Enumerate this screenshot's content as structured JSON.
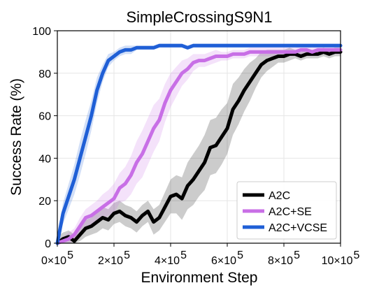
{
  "chart_data": {
    "type": "line",
    "title": "SimpleCrossingS9N1",
    "xlabel": "Environment Step",
    "ylabel": "Success Rate (%)",
    "xlim": [
      0,
      1000000
    ],
    "ylim": [
      0,
      100
    ],
    "x_ticks": [
      {
        "value": 0,
        "mantissa": "0",
        "base": "×10",
        "exp": "5"
      },
      {
        "value": 200000,
        "mantissa": "2",
        "base": "×10",
        "exp": "5"
      },
      {
        "value": 400000,
        "mantissa": "4",
        "base": "×10",
        "exp": "5"
      },
      {
        "value": 600000,
        "mantissa": "6",
        "base": "×10",
        "exp": "5"
      },
      {
        "value": 800000,
        "mantissa": "8",
        "base": "×10",
        "exp": "5"
      },
      {
        "value": 1000000,
        "mantissa": "10",
        "base": "×10",
        "exp": "5"
      }
    ],
    "y_ticks": [
      0,
      20,
      40,
      60,
      80,
      100
    ],
    "grid": true,
    "legend_position": "bottom-right",
    "series": [
      {
        "name": "A2C",
        "color": "#000000",
        "x": [
          0,
          20000,
          40000,
          60000,
          80000,
          100000,
          120000,
          140000,
          160000,
          180000,
          200000,
          220000,
          240000,
          260000,
          280000,
          300000,
          320000,
          340000,
          360000,
          380000,
          400000,
          420000,
          440000,
          460000,
          480000,
          500000,
          520000,
          540000,
          560000,
          580000,
          600000,
          620000,
          640000,
          660000,
          680000,
          700000,
          720000,
          740000,
          760000,
          780000,
          800000,
          820000,
          840000,
          860000,
          880000,
          900000,
          920000,
          940000,
          960000,
          980000,
          1000000
        ],
        "y": [
          0,
          2,
          3,
          1,
          4,
          7,
          8,
          10,
          12,
          11,
          14,
          15,
          13,
          12,
          10,
          13,
          15,
          10,
          12,
          17,
          22,
          23,
          21,
          27,
          30,
          34,
          38,
          45,
          46,
          50,
          54,
          63,
          67,
          72,
          76,
          80,
          84,
          86,
          87,
          88,
          88,
          89,
          89,
          88,
          89,
          89,
          89,
          90,
          89,
          90,
          90
        ],
        "band": [
          3,
          3,
          3,
          3,
          3,
          4,
          4,
          5,
          5,
          5,
          5,
          5,
          5,
          5,
          5,
          5,
          5,
          6,
          6,
          7,
          8,
          9,
          10,
          11,
          12,
          12,
          13,
          13,
          13,
          13,
          12,
          12,
          11,
          10,
          9,
          7,
          6,
          5,
          4,
          3,
          3,
          3,
          2,
          2,
          2,
          2,
          2,
          2,
          2,
          2,
          2
        ]
      },
      {
        "name": "A2C+SE",
        "color": "#c86fe6",
        "x": [
          0,
          20000,
          40000,
          60000,
          80000,
          100000,
          120000,
          140000,
          160000,
          180000,
          200000,
          220000,
          240000,
          260000,
          280000,
          300000,
          320000,
          340000,
          360000,
          380000,
          400000,
          420000,
          440000,
          460000,
          480000,
          500000,
          520000,
          540000,
          560000,
          580000,
          600000,
          620000,
          640000,
          660000,
          680000,
          700000,
          720000,
          740000,
          760000,
          780000,
          800000,
          820000,
          840000,
          860000,
          880000,
          900000,
          920000,
          940000,
          960000,
          980000,
          1000000
        ],
        "y": [
          0,
          1,
          2,
          4,
          8,
          12,
          13,
          15,
          17,
          19,
          21,
          26,
          28,
          32,
          38,
          42,
          48,
          54,
          58,
          66,
          72,
          76,
          80,
          82,
          85,
          86,
          86,
          87,
          88,
          88,
          88,
          89,
          89,
          89,
          90,
          90,
          90,
          90,
          90,
          90,
          90,
          90,
          90,
          91,
          91,
          90,
          91,
          91,
          91,
          91,
          91
        ],
        "band": [
          2,
          2,
          3,
          3,
          4,
          4,
          5,
          5,
          6,
          6,
          7,
          7,
          8,
          9,
          10,
          11,
          11,
          11,
          10,
          9,
          8,
          7,
          6,
          5,
          4,
          3,
          3,
          3,
          3,
          2,
          2,
          2,
          2,
          2,
          2,
          2,
          2,
          2,
          2,
          2,
          2,
          2,
          2,
          2,
          2,
          2,
          2,
          2,
          2,
          2,
          2
        ]
      },
      {
        "name": "A2C+VCSE",
        "color": "#1f5fd6",
        "x": [
          0,
          20000,
          40000,
          60000,
          80000,
          100000,
          120000,
          140000,
          160000,
          180000,
          200000,
          220000,
          240000,
          260000,
          280000,
          300000,
          320000,
          340000,
          360000,
          380000,
          400000,
          420000,
          440000,
          460000,
          480000,
          500000,
          520000,
          540000,
          560000,
          580000,
          600000,
          620000,
          640000,
          660000,
          680000,
          700000,
          720000,
          740000,
          760000,
          780000,
          800000,
          820000,
          840000,
          860000,
          880000,
          900000,
          920000,
          940000,
          960000,
          980000,
          1000000
        ],
        "y": [
          0,
          14,
          22,
          30,
          40,
          50,
          60,
          72,
          80,
          86,
          88,
          90,
          91,
          91,
          92,
          92,
          92,
          92,
          93,
          93,
          93,
          93,
          93,
          92,
          93,
          93,
          93,
          93,
          93,
          93,
          93,
          93,
          93,
          93,
          93,
          93,
          93,
          93,
          93,
          93,
          93,
          93,
          93,
          93,
          93,
          93,
          93,
          93,
          93,
          93,
          93
        ],
        "band": [
          3,
          5,
          6,
          7,
          8,
          8,
          7,
          6,
          4,
          3,
          2,
          2,
          2,
          2,
          1,
          1,
          1,
          1,
          1,
          1,
          1,
          1,
          1,
          1,
          1,
          1,
          1,
          1,
          1,
          1,
          1,
          1,
          1,
          1,
          1,
          1,
          1,
          1,
          1,
          1,
          1,
          1,
          1,
          1,
          1,
          1,
          1,
          1,
          1,
          1,
          1
        ]
      }
    ]
  }
}
